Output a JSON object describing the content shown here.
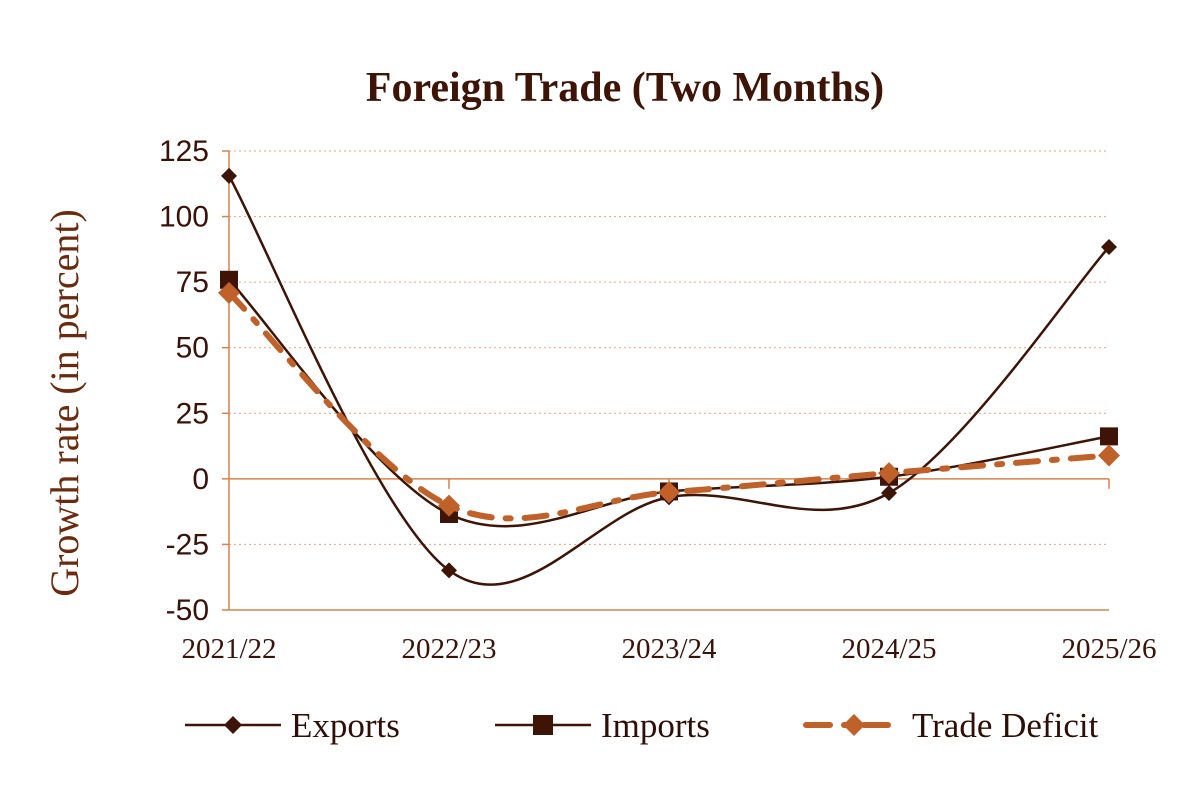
{
  "chart_data": {
    "type": "line",
    "title": "Foreign Trade (Two Months)",
    "xlabel": "",
    "ylabel": "Growth rate (in percent)",
    "categories": [
      "2021/22",
      "2022/23",
      "2023/24",
      "2024/25",
      "2025/26"
    ],
    "ylim": [
      -50,
      125
    ],
    "yticks": [
      -50,
      -25,
      0,
      25,
      50,
      75,
      100,
      125
    ],
    "ytick_labels": [
      "-50",
      "-25",
      "0",
      "25",
      "50",
      "75",
      "100",
      "125"
    ],
    "grid": "horizontal-dotted",
    "legend_position": "bottom",
    "series": [
      {
        "name": "Exports",
        "values": [
          115.5,
          -34.9,
          -7.0,
          -5.4,
          88.4
        ],
        "color": "#3d1406",
        "marker": "diamond",
        "line": "solid"
      },
      {
        "name": "Imports",
        "values": [
          75.9,
          -13.4,
          -4.8,
          0.8,
          16.2
        ],
        "color": "#3d1406",
        "marker": "square",
        "line": "solid"
      },
      {
        "name": "Trade Deficit",
        "values": [
          70.9,
          -10.2,
          -5.1,
          2.2,
          8.9
        ],
        "color": "#c0612a",
        "marker": "diamond",
        "line": "dash-dot"
      }
    ]
  }
}
